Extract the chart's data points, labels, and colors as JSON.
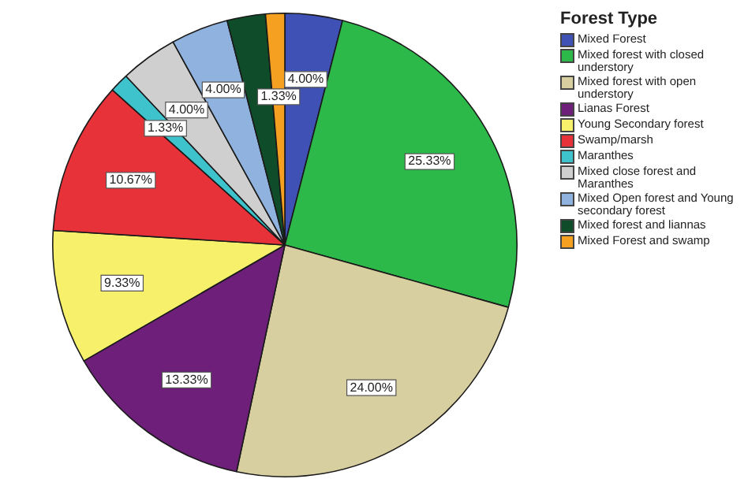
{
  "chart_data": {
    "type": "pie",
    "legend_title": "Forest Type",
    "legend": "top right",
    "categories": [
      "Mixed Forest",
      "Mixed forest with closed understory",
      "Mixed forest with open understory",
      "Lianas Forest",
      "Young Secondary forest",
      "Swamp/marsh",
      "Maranthes",
      "Mixed close forest and Maranthes",
      "Mixed Open forest and Young secondary forest",
      "Mixed forest and liannas",
      "Mixed Forest and swamp"
    ],
    "values": [
      4.0,
      25.33,
      24.0,
      13.33,
      9.33,
      10.67,
      1.33,
      4.0,
      4.0,
      2.67,
      1.33
    ],
    "colors": [
      "#3f51b5",
      "#2db84a",
      "#d8cfa0",
      "#6d1f7a",
      "#f7f06a",
      "#e8323a",
      "#3ec3cc",
      "#cfcfcf",
      "#8fb3de",
      "#0f4d2a",
      "#f5a020"
    ],
    "value_labels": [
      "4.00%",
      "25.33%",
      "24.00%",
      "13.33%",
      "9.33%",
      "10.67%",
      "1.33%",
      "4.00%",
      "4.00%",
      null,
      "1.33%"
    ]
  }
}
